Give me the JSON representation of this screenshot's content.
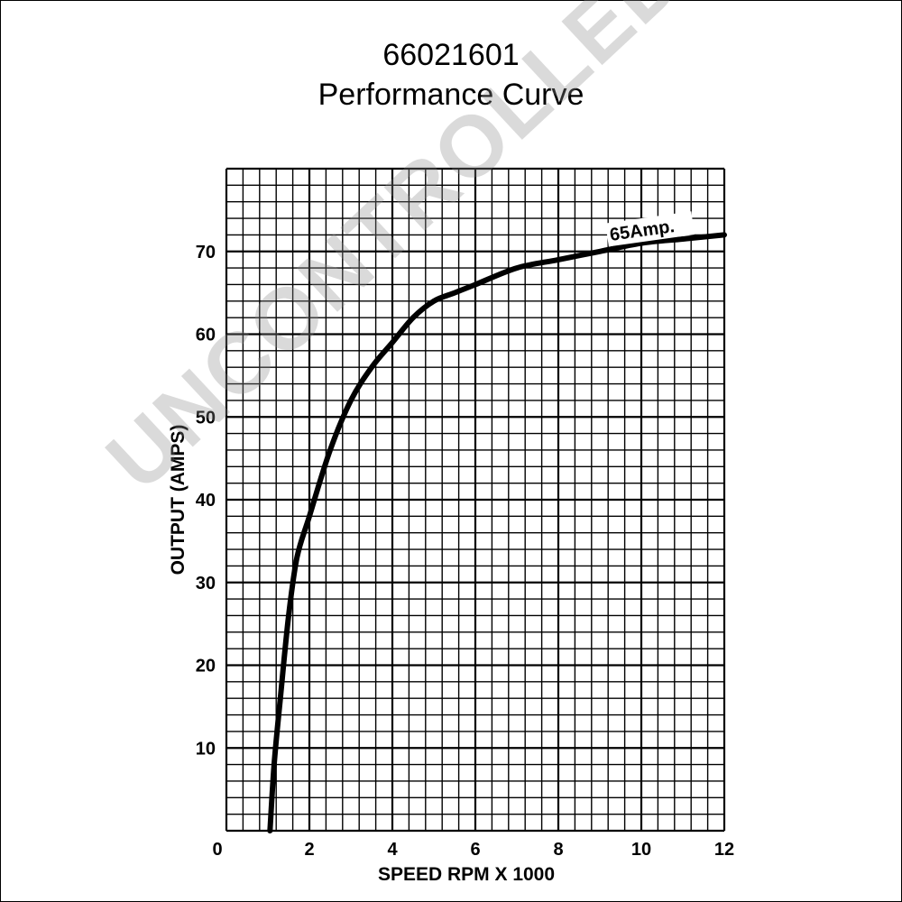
{
  "header": {
    "part_number": "66021601",
    "subtitle": "Performance Curve"
  },
  "watermark": "UNCONTROLLED COPY",
  "chart_data": {
    "type": "line",
    "title": "66021601",
    "subtitle": "Performance Curve",
    "xlabel": "SPEED RPM X 1000",
    "ylabel": "OUTPUT (AMPS)",
    "xlim": [
      0,
      12
    ],
    "ylim": [
      0,
      80
    ],
    "x_ticks": [
      2,
      4,
      6,
      8,
      10,
      12
    ],
    "y_ticks": [
      10,
      20,
      30,
      40,
      50,
      60,
      70
    ],
    "origin_label": "0",
    "grid": true,
    "annotation": {
      "text": "65Amp.",
      "x": 9.0,
      "y": 71.5
    },
    "series": [
      {
        "name": "",
        "x": [
          1.05,
          1.15,
          1.3,
          1.5,
          1.7,
          2.0,
          2.5,
          3.0,
          3.5,
          4.0,
          4.5,
          5.0,
          5.5,
          6.0,
          7.0,
          8.0,
          9.0,
          10.0,
          11.0,
          12.0
        ],
        "y": [
          0,
          8,
          16,
          26,
          33,
          38,
          46,
          52,
          56,
          59,
          62,
          64,
          65,
          66,
          68,
          69,
          70,
          71,
          71.5,
          72
        ]
      }
    ]
  }
}
